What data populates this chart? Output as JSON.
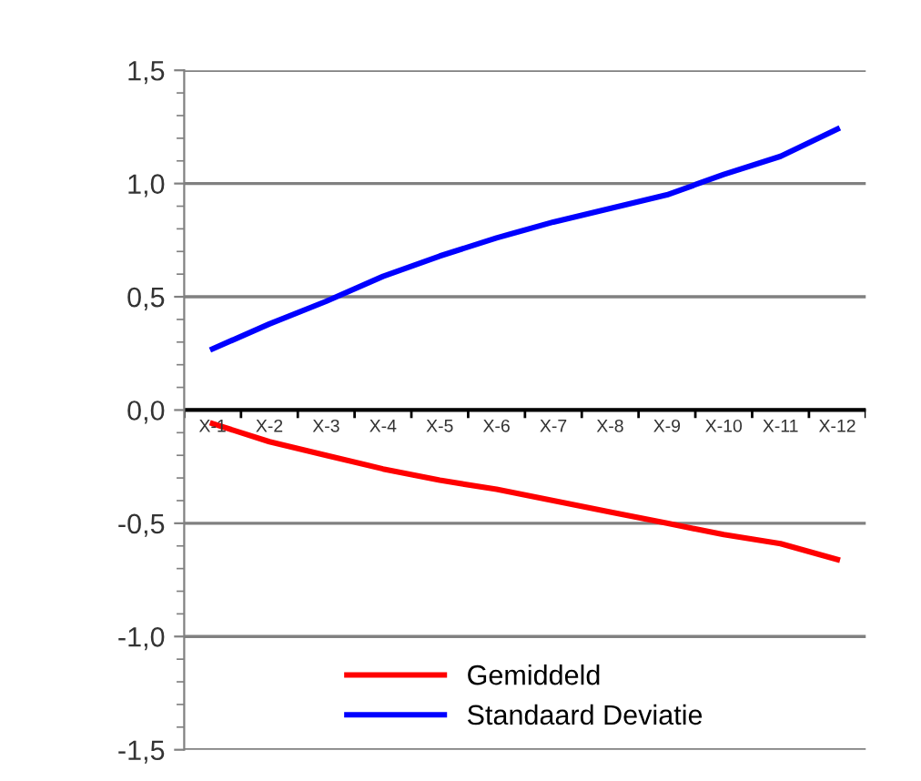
{
  "chart_data": {
    "type": "line",
    "categories": [
      "X-1",
      "X-2",
      "X-3",
      "X-4",
      "X-5",
      "X-6",
      "X-7",
      "X-8",
      "X-9",
      "X-10",
      "X-11",
      "X-12"
    ],
    "series": [
      {
        "name": "Gemiddeld",
        "color": "#ff0000",
        "values": [
          -0.06,
          -0.14,
          -0.2,
          -0.26,
          -0.31,
          -0.35,
          -0.4,
          -0.45,
          -0.5,
          -0.55,
          -0.59,
          -0.66
        ]
      },
      {
        "name": "Standaard Deviatie",
        "color": "#0000ff",
        "values": [
          0.27,
          0.38,
          0.48,
          0.59,
          0.68,
          0.76,
          0.83,
          0.89,
          0.95,
          1.04,
          1.12,
          1.24
        ]
      }
    ],
    "ylim": [
      -1.5,
      1.5
    ],
    "yticks": [
      {
        "value": -1.5,
        "label": "-1,5"
      },
      {
        "value": -1.0,
        "label": "-1,0"
      },
      {
        "value": -0.5,
        "label": "-0,5"
      },
      {
        "value": 0.0,
        "label": "0,0"
      },
      {
        "value": 0.5,
        "label": "0,5"
      },
      {
        "value": 1.0,
        "label": "1,0"
      },
      {
        "value": 1.5,
        "label": "1,5"
      }
    ],
    "grid": "y",
    "legend": "bottom",
    "marker": "none",
    "line_style": "solid"
  }
}
